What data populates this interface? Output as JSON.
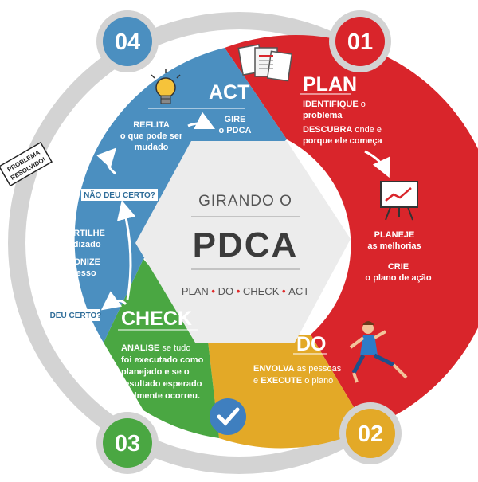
{
  "center": {
    "top_text": "GIRANDO O",
    "title": "PDCA",
    "subtitle_parts": [
      "PLAN",
      "DO",
      "CHECK",
      "ACT"
    ]
  },
  "colors": {
    "plan": "#d9252b",
    "do": "#e3a927",
    "check": "#4aa742",
    "act": "#4b8fc0",
    "ring": "#d3d3d3",
    "center_bg": "#ececec",
    "dot": "#e02a2a"
  },
  "plan": {
    "number": "01",
    "title": "PLAN",
    "l1a": "IDENTIFIQUE",
    "l1b": " o",
    "l2": "problema",
    "l3a": "DESCUBRA",
    "l3b": " onde e",
    "l4": "porque ele começa",
    "l5": "PLANEJE",
    "l6": "as melhorias",
    "l7": "CRIE",
    "l8": "o plano de ação",
    "icons": [
      "documents-icon",
      "chart-board-icon"
    ]
  },
  "do": {
    "number": "02",
    "title": "DO",
    "l1a": "ENVOLVA",
    "l1b": " as pessoas",
    "l2a": "e ",
    "l2b": "EXECUTE",
    "l2c": " o plano",
    "icons": [
      "runner-icon"
    ]
  },
  "check": {
    "number": "03",
    "title": "CHECK",
    "l1a": "ANALISE",
    "l1b": " se tudo",
    "l2": "foi executado como",
    "l3": "planejado e se o",
    "l4": "resultado esperado",
    "l5": "realmente ocorreu.",
    "icons": [
      "checkmark-icon"
    ]
  },
  "act": {
    "number": "04",
    "title": "ACT",
    "r1": "REFLITA",
    "r2": "o que pode ser",
    "r3": "mudado",
    "g1": "GIRE",
    "g2": "o PDCA",
    "c1": "COMPARTILHE",
    "c2": "o aprendizado",
    "p1": "PADRONIZE",
    "p2": "o processo",
    "not_ok": "NÃO DEU CERTO?",
    "ok": "DEU CERTO?",
    "stamp1": "PROBLEMA",
    "stamp2": "RESOLVIDO!",
    "icons": [
      "lightbulb-icon"
    ]
  }
}
